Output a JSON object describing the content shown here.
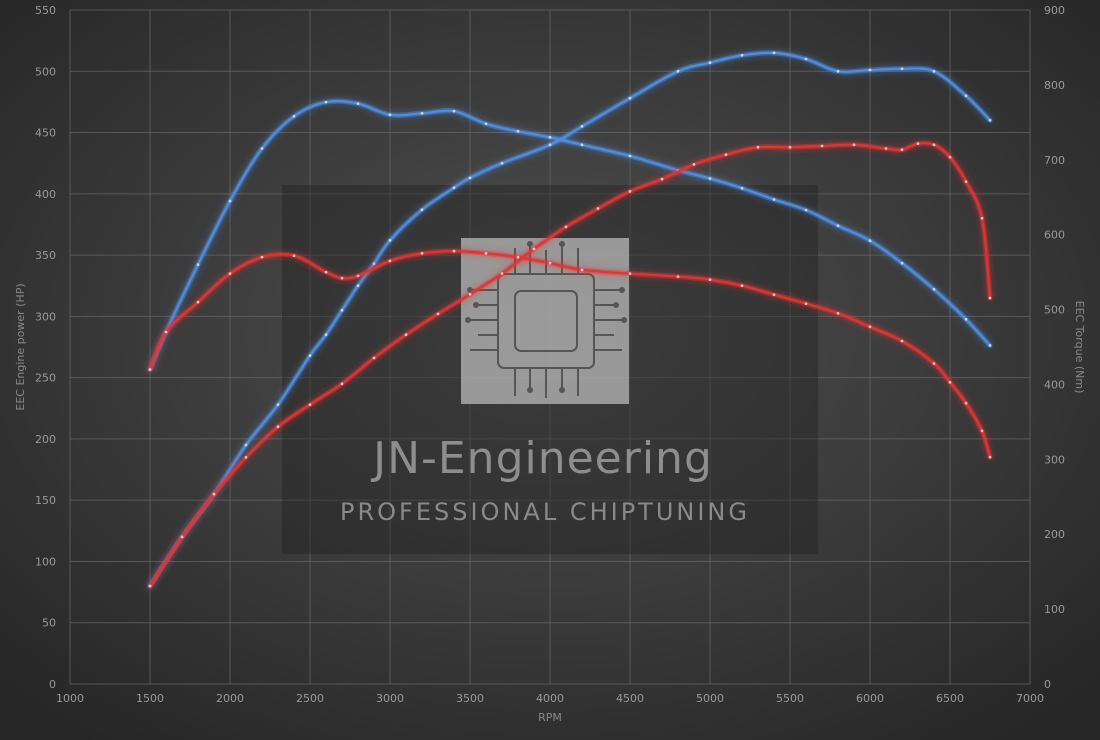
{
  "chart_data": {
    "type": "line",
    "xlabel": "RPM",
    "ylabel_left": "EEC Engine power (HP)",
    "ylabel_right": "EEC Torque (Nm)",
    "x_ticks": [
      1000,
      1500,
      2000,
      2500,
      3000,
      3500,
      4000,
      4500,
      5000,
      5500,
      6000,
      6500,
      7000
    ],
    "y_left_ticks": [
      0,
      50,
      100,
      150,
      200,
      250,
      300,
      350,
      400,
      450,
      500,
      550
    ],
    "y_right_ticks": [
      0,
      100,
      200,
      300,
      400,
      500,
      600,
      700,
      800,
      900
    ],
    "xlim": [
      1000,
      7000
    ],
    "ylim_left": [
      0,
      550
    ],
    "ylim_right": [
      0,
      900
    ],
    "grid": true,
    "colors": {
      "tuned": "#4f8fe0",
      "stock": "#e03535",
      "grid": "#6a6a6a"
    },
    "series": [
      {
        "id": "tuned-power",
        "axis": "left",
        "color": "#4f8fe0",
        "x": [
          1500,
          1700,
          1900,
          2100,
          2300,
          2500,
          2600,
          2700,
          2800,
          2900,
          3000,
          3200,
          3400,
          3500,
          3700,
          4000,
          4200,
          4500,
          4800,
          5000,
          5200,
          5400,
          5600,
          5800,
          6000,
          6200,
          6400,
          6600,
          6750
        ],
        "y": [
          80,
          120,
          155,
          195,
          228,
          268,
          285,
          305,
          325,
          343,
          362,
          387,
          405,
          413,
          425,
          440,
          455,
          478,
          500,
          507,
          513,
          515,
          510,
          500,
          501,
          502,
          500,
          480,
          460
        ]
      },
      {
        "id": "tuned-torque",
        "axis": "right",
        "color": "#4f8fe0",
        "x": [
          1500,
          1600,
          1800,
          2000,
          2200,
          2400,
          2600,
          2800,
          3000,
          3200,
          3400,
          3600,
          3800,
          4000,
          4200,
          4500,
          4800,
          5000,
          5200,
          5400,
          5600,
          5800,
          6000,
          6200,
          6400,
          6600,
          6750
        ],
        "y": [
          420,
          470,
          560,
          645,
          715,
          758,
          777,
          775,
          760,
          762,
          765,
          748,
          738,
          730,
          720,
          705,
          686,
          675,
          662,
          647,
          633,
          612,
          592,
          562,
          527,
          487,
          452
        ]
      },
      {
        "id": "stock-power",
        "axis": "left",
        "color": "#e03535",
        "x": [
          1500,
          1700,
          1900,
          2100,
          2300,
          2500,
          2700,
          2900,
          3100,
          3300,
          3500,
          3700,
          3900,
          4100,
          4300,
          4500,
          4700,
          4900,
          5100,
          5300,
          5500,
          5700,
          5900,
          6100,
          6200,
          6300,
          6400,
          6500,
          6600,
          6700,
          6750
        ],
        "y": [
          80,
          120,
          155,
          185,
          210,
          228,
          245,
          266,
          285,
          302,
          318,
          335,
          355,
          373,
          388,
          402,
          412,
          424,
          432,
          438,
          438,
          439,
          440,
          437,
          436,
          441,
          440,
          430,
          410,
          380,
          315
        ]
      },
      {
        "id": "stock-torque",
        "axis": "right",
        "color": "#e03535",
        "x": [
          1500,
          1600,
          1800,
          2000,
          2200,
          2400,
          2600,
          2700,
          2800,
          3000,
          3200,
          3400,
          3600,
          3800,
          4000,
          4200,
          4500,
          4800,
          5000,
          5200,
          5400,
          5600,
          5800,
          6000,
          6200,
          6400,
          6500,
          6600,
          6700,
          6750
        ],
        "y": [
          420,
          470,
          510,
          548,
          570,
          572,
          550,
          542,
          545,
          565,
          575,
          578,
          575,
          570,
          562,
          553,
          548,
          544,
          540,
          532,
          520,
          508,
          495,
          477,
          458,
          428,
          403,
          375,
          338,
          303
        ]
      }
    ]
  },
  "branding": {
    "title": "JN-Engineering",
    "subtitle": "PROFESSIONAL CHIPTUNING"
  }
}
